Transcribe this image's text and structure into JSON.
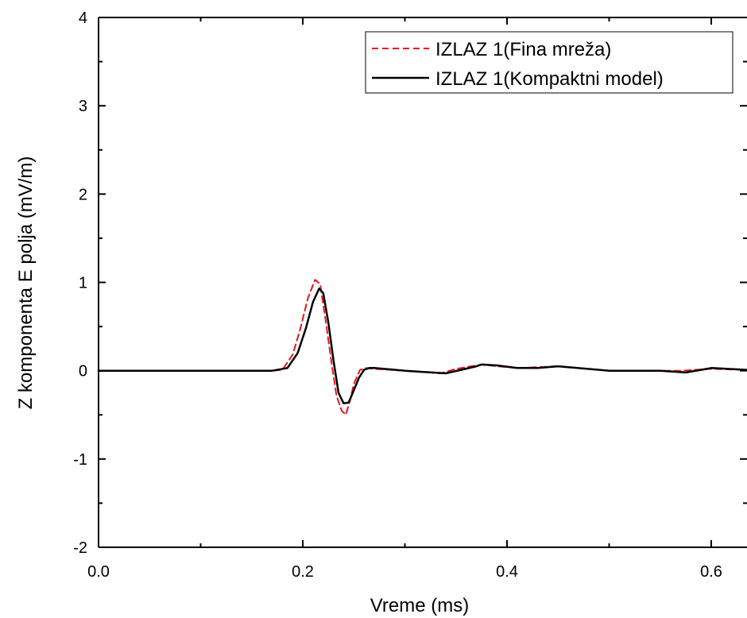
{
  "chart_data": {
    "type": "line",
    "title": "",
    "xlabel": "Vreme (ms)",
    "ylabel": "Z komponenta E polja (mV/m)",
    "xlim": [
      0.0,
      0.635
    ],
    "ylim": [
      -2,
      4
    ],
    "x_ticks": [
      0.0,
      0.2,
      0.4,
      0.6
    ],
    "x_tick_labels": [
      "0.0",
      "0.2",
      "0.4",
      "0.6"
    ],
    "y_ticks": [
      -2,
      -1,
      0,
      1,
      2,
      3,
      4
    ],
    "y_tick_labels": [
      "-2",
      "-1",
      "0",
      "1",
      "2",
      "3",
      "4"
    ],
    "grid": false,
    "legend_position": "top-right",
    "series": [
      {
        "name": "IZLAZ 1(Fina mreža)",
        "color": "#e8141c",
        "style": "dashed",
        "x": [
          0.0,
          0.17,
          0.18,
          0.19,
          0.197,
          0.205,
          0.212,
          0.217,
          0.222,
          0.228,
          0.233,
          0.238,
          0.242,
          0.246,
          0.25,
          0.256,
          0.262,
          0.27,
          0.3,
          0.335,
          0.35,
          0.365,
          0.375,
          0.39,
          0.41,
          0.43,
          0.45,
          0.46,
          0.5,
          0.55,
          0.57,
          0.6,
          0.635
        ],
        "y": [
          0.0,
          0.0,
          0.01,
          0.18,
          0.45,
          0.82,
          1.03,
          0.98,
          0.6,
          0.1,
          -0.28,
          -0.45,
          -0.5,
          -0.35,
          -0.15,
          0.01,
          0.03,
          0.02,
          0.0,
          -0.03,
          0.02,
          0.05,
          0.07,
          0.05,
          0.03,
          0.04,
          0.05,
          0.04,
          0.0,
          0.0,
          0.0,
          0.02,
          0.01
        ]
      },
      {
        "name": "IZLAZ 1(Kompaktni model)",
        "color": "#000000",
        "style": "solid",
        "x": [
          0.0,
          0.17,
          0.185,
          0.195,
          0.203,
          0.21,
          0.216,
          0.22,
          0.225,
          0.23,
          0.235,
          0.24,
          0.245,
          0.25,
          0.255,
          0.26,
          0.265,
          0.27,
          0.3,
          0.34,
          0.355,
          0.37,
          0.375,
          0.39,
          0.41,
          0.43,
          0.45,
          0.46,
          0.5,
          0.55,
          0.575,
          0.59,
          0.6,
          0.635
        ],
        "y": [
          0.0,
          0.0,
          0.03,
          0.2,
          0.48,
          0.78,
          0.93,
          0.88,
          0.55,
          0.12,
          -0.25,
          -0.37,
          -0.36,
          -0.22,
          -0.08,
          0.01,
          0.03,
          0.03,
          0.0,
          -0.03,
          0.01,
          0.05,
          0.07,
          0.06,
          0.03,
          0.03,
          0.05,
          0.04,
          0.0,
          0.0,
          -0.02,
          0.01,
          0.03,
          0.01
        ]
      }
    ]
  }
}
